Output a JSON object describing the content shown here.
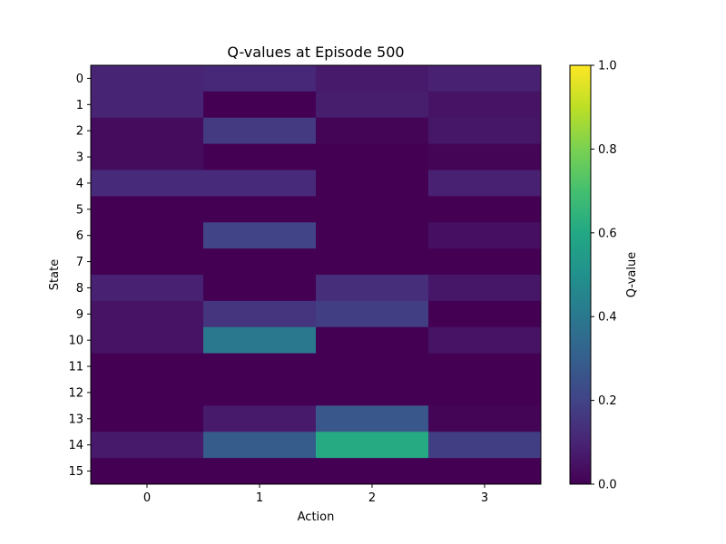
{
  "chart_data": {
    "type": "heatmap",
    "title": "Q-values at Episode 500",
    "xlabel": "Action",
    "ylabel": "State",
    "x_categories": [
      "0",
      "1",
      "2",
      "3"
    ],
    "y_categories": [
      "0",
      "1",
      "2",
      "3",
      "4",
      "5",
      "6",
      "7",
      "8",
      "9",
      "10",
      "11",
      "12",
      "13",
      "14",
      "15"
    ],
    "values": [
      [
        0.1,
        0.11,
        0.07,
        0.09
      ],
      [
        0.1,
        0.0,
        0.08,
        0.05
      ],
      [
        0.03,
        0.17,
        0.01,
        0.06
      ],
      [
        0.03,
        0.0,
        0.0,
        0.01
      ],
      [
        0.12,
        0.12,
        0.0,
        0.09
      ],
      [
        0.0,
        0.0,
        0.0,
        0.0
      ],
      [
        0.0,
        0.2,
        0.0,
        0.04
      ],
      [
        0.0,
        0.0,
        0.0,
        0.0
      ],
      [
        0.09,
        0.0,
        0.13,
        0.06
      ],
      [
        0.05,
        0.15,
        0.18,
        0.0
      ],
      [
        0.05,
        0.4,
        0.0,
        0.05
      ],
      [
        0.0,
        0.0,
        0.0,
        0.0
      ],
      [
        0.0,
        0.0,
        0.0,
        0.0
      ],
      [
        0.0,
        0.07,
        0.27,
        0.01
      ],
      [
        0.07,
        0.29,
        0.61,
        0.18
      ],
      [
        0.0,
        0.0,
        0.0,
        0.0
      ]
    ],
    "colormap": "viridis",
    "vmin": 0.0,
    "vmax": 1.0,
    "colorbar": {
      "label": "Q-value",
      "ticks": [
        "0.0",
        "0.2",
        "0.4",
        "0.6",
        "0.8",
        "1.0"
      ],
      "tick_values": [
        0.0,
        0.2,
        0.4,
        0.6,
        0.8,
        1.0
      ]
    }
  }
}
